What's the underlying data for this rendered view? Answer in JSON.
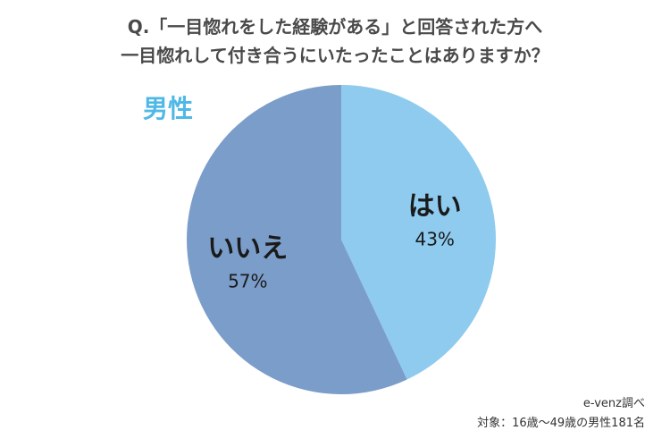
{
  "header": {
    "question_line1": "Q.「一目惚れをした経験がある」と回答された方へ",
    "question_line2": "一目惚れして付き合うにいたったことはありますか？"
  },
  "group_label": "男性",
  "chart_data": {
    "type": "pie",
    "start_angle_deg": 0,
    "direction": "clockwise",
    "slices": [
      {
        "label": "はい",
        "value": 43,
        "value_label": "43%",
        "color": "#8ecbee"
      },
      {
        "label": "いいえ",
        "value": 57,
        "value_label": "57%",
        "color": "#7b9dca"
      }
    ]
  },
  "footer": {
    "source": "e-venz調べ",
    "note": "対象：16歳〜49歳の男性181名"
  }
}
